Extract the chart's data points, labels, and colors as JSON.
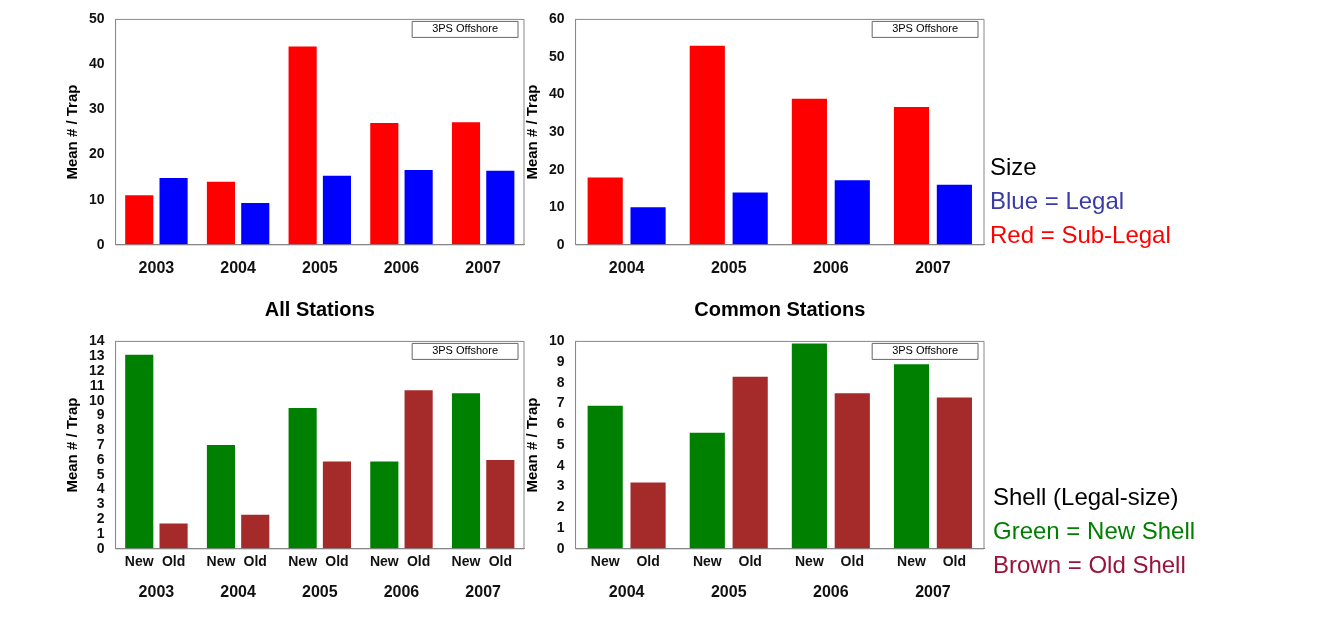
{
  "chart_data": [
    {
      "type": "bar",
      "xlabel": "All Stations",
      "ylabel": "Mean # / Trap",
      "annotations": [
        "3PS Offshore"
      ],
      "categories": [
        "2003",
        "2004",
        "2005",
        "2006",
        "2007"
      ],
      "ylim": [
        0,
        50
      ],
      "yticks": [
        0,
        10,
        20,
        30,
        40,
        50
      ],
      "series": [
        {
          "color": "#ff0000",
          "values": [
            11.0,
            14.0,
            44,
            27.0,
            27.2
          ]
        },
        {
          "color": "#0000ff",
          "values": [
            14.8,
            9.3,
            15.3,
            16.6,
            16.4
          ]
        }
      ]
    },
    {
      "type": "bar",
      "xlabel": "Common Stations",
      "ylabel": "Mean # / Trap",
      "annotations": [
        "3PS Offshore"
      ],
      "categories": [
        "2004",
        "2005",
        "2006",
        "2007"
      ],
      "ylim": [
        0,
        60
      ],
      "yticks": [
        0,
        10,
        20,
        30,
        40,
        50,
        60
      ],
      "series": [
        {
          "color": "#ff0000",
          "values": [
            17.9,
            53,
            38.9,
            36.7
          ]
        },
        {
          "color": "#0000ff",
          "values": [
            10.0,
            13.9,
            17.2,
            16.0
          ]
        }
      ]
    },
    {
      "type": "bar",
      "ylabel": "Mean # / Trap",
      "annotations": [
        "3PS Offshore"
      ],
      "categories": [
        "2003",
        "2004",
        "2005",
        "2006",
        "2007"
      ],
      "ylim": [
        0,
        14
      ],
      "yticks": [
        0,
        1,
        2,
        3,
        4,
        5,
        6,
        7,
        8,
        9,
        10,
        11,
        12,
        13,
        14
      ],
      "series": [
        {
          "name": "New",
          "color": "#008000",
          "values": [
            13.1,
            7.0,
            9.5,
            5.9,
            10.5
          ]
        },
        {
          "name": "Old",
          "color": "#a52a2a",
          "values": [
            1.7,
            2.3,
            5.9,
            10.7,
            6.0
          ]
        }
      ]
    },
    {
      "type": "bar",
      "ylabel": "Mean # / Trap",
      "annotations": [
        "3PS Offshore"
      ],
      "categories": [
        "2004",
        "2005",
        "2006",
        "2007"
      ],
      "ylim": [
        0,
        10
      ],
      "yticks": [
        0,
        1,
        2,
        3,
        4,
        5,
        6,
        7,
        8,
        9,
        10
      ],
      "series": [
        {
          "name": "New",
          "color": "#008000",
          "values": [
            6.9,
            5.6,
            9.9,
            8.9
          ]
        },
        {
          "name": "Old",
          "color": "#a52a2a",
          "values": [
            3.2,
            8.3,
            7.5,
            7.3
          ]
        }
      ]
    },
    {
      "type": "other",
      "title": "Size",
      "annotations": [
        "Blue = Legal",
        "Red = Sub-Legal"
      ],
      "colors": [
        "#3a3aaa",
        "#ff0000"
      ]
    },
    {
      "type": "other",
      "title": "Shell (Legal-size)",
      "annotations": [
        "Green = New Shell",
        "Brown = Old Shell"
      ],
      "colors": [
        "#008000",
        "#99143c"
      ]
    }
  ]
}
